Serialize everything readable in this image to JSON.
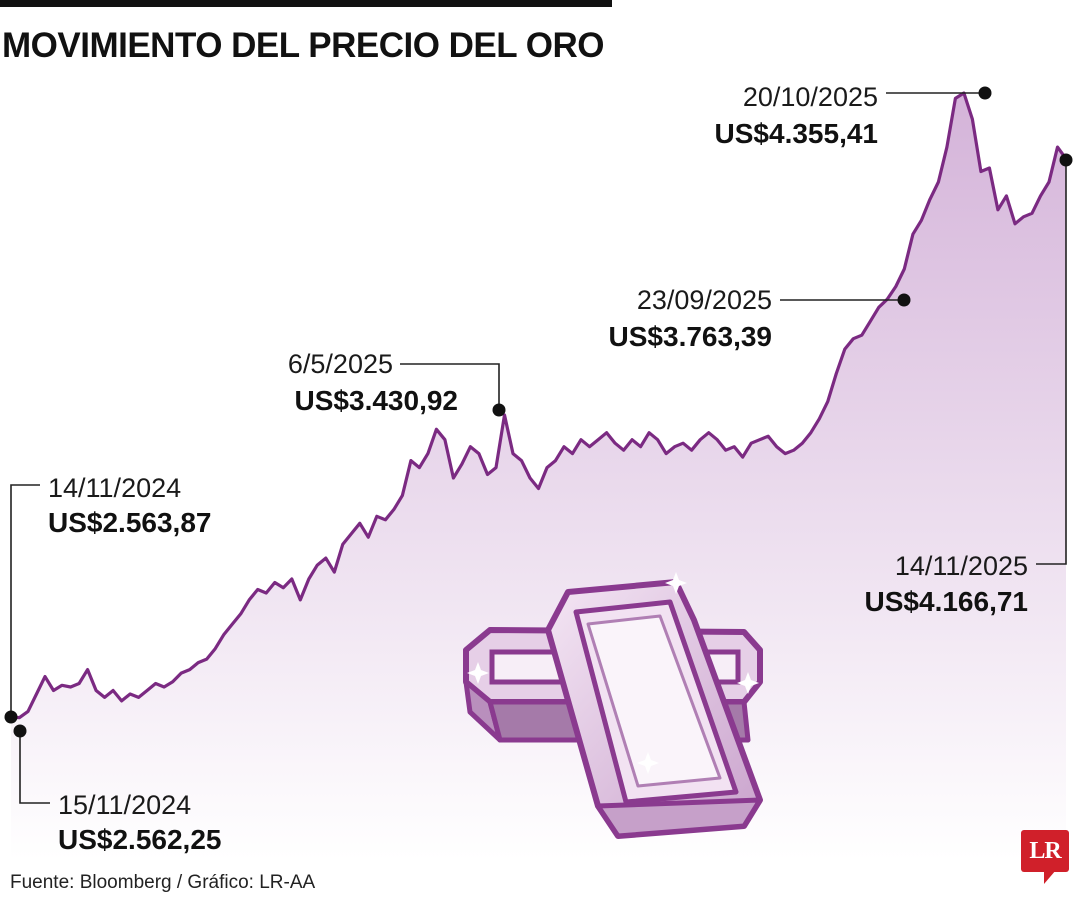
{
  "chart_data": {
    "type": "area",
    "title": "MOVIMIENTO DEL PRECIO DEL ORO",
    "xlabel": "",
    "ylabel": "",
    "x_range": [
      "14/11/2024",
      "14/11/2025"
    ],
    "ylim": [
      2200,
      4500
    ],
    "grid": false,
    "legend": "none",
    "colors": {
      "line": "#7b2a82",
      "fill_top": "#d4b3d9",
      "fill_bottom": "#ffffff",
      "marker": "#111111"
    },
    "series": [
      {
        "values": [
          2563.87,
          2562.25,
          2580,
          2630,
          2680,
          2640,
          2655,
          2650,
          2660,
          2700,
          2640,
          2620,
          2640,
          2610,
          2630,
          2620,
          2640,
          2660,
          2650,
          2665,
          2690,
          2700,
          2720,
          2730,
          2760,
          2800,
          2830,
          2860,
          2900,
          2930,
          2920,
          2950,
          2935,
          2960,
          2900,
          2960,
          3000,
          3020,
          2980,
          3060,
          3090,
          3120,
          3080,
          3140,
          3130,
          3160,
          3200,
          3300,
          3280,
          3320,
          3390,
          3360,
          3250,
          3290,
          3340,
          3320,
          3260,
          3280,
          3430.92,
          3320,
          3300,
          3250,
          3220,
          3280,
          3300,
          3340,
          3320,
          3360,
          3340,
          3360,
          3380,
          3350,
          3330,
          3360,
          3340,
          3380,
          3360,
          3320,
          3340,
          3350,
          3330,
          3360,
          3380,
          3360,
          3330,
          3340,
          3310,
          3350,
          3360,
          3370,
          3340,
          3320,
          3330,
          3350,
          3380,
          3420,
          3470,
          3550,
          3620,
          3650,
          3660,
          3700,
          3740,
          3763.39,
          3800,
          3850,
          3950,
          3990,
          4050,
          4100,
          4200,
          4340,
          4355.41,
          4280,
          4130,
          4140,
          4020,
          4060,
          3980,
          4000,
          4010,
          4060,
          4100,
          4200,
          4166.71
        ]
      }
    ],
    "annotations": [
      {
        "date": "14/11/2024",
        "value": "US$2.563,87",
        "x": "14/11/2024",
        "y": 2563.87
      },
      {
        "date": "15/11/2024",
        "value": "US$2.562,25",
        "x": "15/11/2024",
        "y": 2562.25
      },
      {
        "date": "6/5/2025",
        "value": "US$3.430,92",
        "x": "6/5/2025",
        "y": 3430.92
      },
      {
        "date": "23/09/2025",
        "value": "US$3.763,39",
        "x": "23/09/2025",
        "y": 3763.39
      },
      {
        "date": "20/10/2025",
        "value": "US$4.355,41",
        "x": "20/10/2025",
        "y": 4355.41
      },
      {
        "date": "14/11/2025",
        "value": "US$4.166,71",
        "x": "14/11/2025",
        "y": 4166.71
      }
    ]
  },
  "source": "Fuente: Bloomberg / Gráfico: LR-AA",
  "logo_text": "LR"
}
